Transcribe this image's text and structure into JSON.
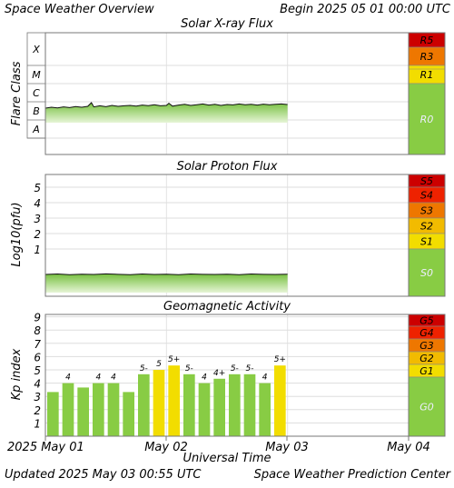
{
  "header": {
    "title": "Space Weather Overview",
    "begin": "Begin 2025 05 01 00:00 UTC"
  },
  "footer": {
    "updated": "Updated 2025 May 03 00:55 UTC",
    "center": "Space Weather Prediction Center"
  },
  "xaxis": {
    "label": "Universal Time",
    "ticks": [
      "2025 May 01",
      "May 02",
      "May 03",
      "May 04"
    ],
    "range_days": [
      0,
      3
    ]
  },
  "chart_data": [
    {
      "type": "area",
      "title": "Solar X-ray Flux",
      "ylabel": "Flare Class",
      "y_classes": [
        "A",
        "B",
        "C",
        "M",
        "X"
      ],
      "scale_levels": [
        "R5",
        "R3",
        "R1",
        "R0"
      ],
      "scale_colors": [
        "#cc0000",
        "#ee7700",
        "#f2dd00",
        "#88cc44"
      ],
      "x_days": [
        0.0,
        0.05,
        0.1,
        0.15,
        0.2,
        0.25,
        0.3,
        0.35,
        0.38,
        0.4,
        0.45,
        0.5,
        0.55,
        0.6,
        0.65,
        0.7,
        0.75,
        0.8,
        0.85,
        0.9,
        0.95,
        1.0,
        1.02,
        1.05,
        1.1,
        1.15,
        1.2,
        1.25,
        1.3,
        1.35,
        1.4,
        1.45,
        1.5,
        1.55,
        1.6,
        1.65,
        1.7,
        1.75,
        1.8,
        1.85,
        1.9,
        1.95,
        2.0
      ],
      "class_level": [
        1.65,
        1.7,
        1.66,
        1.72,
        1.68,
        1.74,
        1.7,
        1.75,
        1.95,
        1.72,
        1.78,
        1.73,
        1.8,
        1.75,
        1.78,
        1.8,
        1.76,
        1.82,
        1.79,
        1.84,
        1.78,
        1.8,
        1.92,
        1.76,
        1.82,
        1.86,
        1.8,
        1.84,
        1.88,
        1.82,
        1.86,
        1.8,
        1.85,
        1.83,
        1.88,
        1.84,
        1.86,
        1.82,
        1.87,
        1.84,
        1.86,
        1.88,
        1.85
      ]
    },
    {
      "type": "area",
      "title": "Solar Proton Flux",
      "ylabel": "Log10(pfu)",
      "y_ticks": [
        1,
        2,
        3,
        4,
        5
      ],
      "scale_levels": [
        "S5",
        "S4",
        "S3",
        "S2",
        "S1",
        "S0"
      ],
      "scale_colors": [
        "#cc0000",
        "#ee2200",
        "#ee7700",
        "#f2bb00",
        "#f2dd00",
        "#88cc44"
      ],
      "x_days": [
        0.0,
        0.1,
        0.2,
        0.3,
        0.4,
        0.5,
        0.6,
        0.7,
        0.8,
        0.9,
        1.0,
        1.1,
        1.2,
        1.3,
        1.4,
        1.5,
        1.6,
        1.7,
        1.8,
        1.9,
        2.0
      ],
      "log_pfu": [
        -0.65,
        -0.62,
        -0.66,
        -0.63,
        -0.65,
        -0.61,
        -0.64,
        -0.66,
        -0.62,
        -0.65,
        -0.63,
        -0.66,
        -0.62,
        -0.64,
        -0.65,
        -0.63,
        -0.66,
        -0.62,
        -0.64,
        -0.65,
        -0.63
      ]
    },
    {
      "type": "bar",
      "title": "Geomagnetic Activity",
      "ylabel": "Kp index",
      "y_ticks": [
        1,
        2,
        3,
        4,
        5,
        6,
        7,
        8,
        9
      ],
      "scale_levels": [
        "G5",
        "G4",
        "G3",
        "G2",
        "G1",
        "G0"
      ],
      "scale_colors": [
        "#cc0000",
        "#ee2200",
        "#ee7700",
        "#f2bb00",
        "#f2dd00",
        "#88cc44"
      ],
      "bars": [
        {
          "kp": 3.33,
          "label": "",
          "color": "#88cc44"
        },
        {
          "kp": 4.0,
          "label": "4",
          "color": "#88cc44"
        },
        {
          "kp": 3.67,
          "label": "",
          "color": "#88cc44"
        },
        {
          "kp": 4.0,
          "label": "4",
          "color": "#88cc44"
        },
        {
          "kp": 4.0,
          "label": "4",
          "color": "#88cc44"
        },
        {
          "kp": 3.33,
          "label": "",
          "color": "#88cc44"
        },
        {
          "kp": 4.67,
          "label": "5-",
          "color": "#88cc44"
        },
        {
          "kp": 5.0,
          "label": "5",
          "color": "#f2dd00"
        },
        {
          "kp": 5.33,
          "label": "5+",
          "color": "#f2dd00"
        },
        {
          "kp": 4.67,
          "label": "5-",
          "color": "#88cc44"
        },
        {
          "kp": 4.0,
          "label": "4",
          "color": "#88cc44"
        },
        {
          "kp": 4.33,
          "label": "4+",
          "color": "#88cc44"
        },
        {
          "kp": 4.67,
          "label": "5-",
          "color": "#88cc44"
        },
        {
          "kp": 4.67,
          "label": "5-",
          "color": "#88cc44"
        },
        {
          "kp": 4.0,
          "label": "4",
          "color": "#88cc44"
        },
        {
          "kp": 5.33,
          "label": "5+",
          "color": "#f2dd00"
        }
      ]
    }
  ]
}
